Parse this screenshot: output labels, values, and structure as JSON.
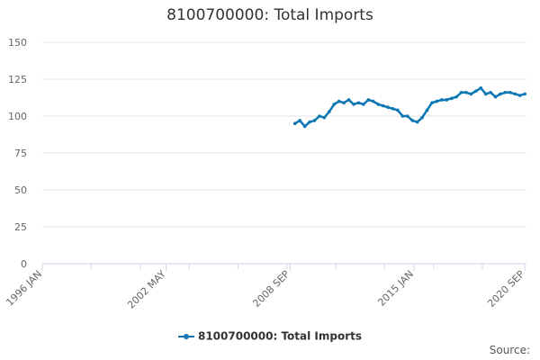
{
  "chart_data": {
    "type": "line",
    "title": "8100700000: Total Imports",
    "xlabel": "",
    "ylabel": "",
    "x_tick_labels": [
      "1996 JAN",
      "2002 MAY",
      "2008 SEP",
      "2015 JAN",
      "2020 SEP"
    ],
    "y_ticks": [
      0,
      25,
      50,
      75,
      100,
      125,
      150
    ],
    "ylim": [
      0,
      150
    ],
    "xlim": [
      "1996-01",
      "2020-10"
    ],
    "grid": true,
    "legend_position": "bottom",
    "series_color": "#0b77b3",
    "series": [
      {
        "name": "8100700000: Total Imports",
        "x": [
          "2008-12",
          "2009-03",
          "2009-06",
          "2009-09",
          "2009-12",
          "2010-03",
          "2010-06",
          "2010-09",
          "2010-12",
          "2011-03",
          "2011-06",
          "2011-09",
          "2011-12",
          "2012-03",
          "2012-06",
          "2012-09",
          "2012-12",
          "2013-03",
          "2013-06",
          "2013-09",
          "2013-12",
          "2014-03",
          "2014-06",
          "2014-09",
          "2014-12",
          "2015-03",
          "2015-06",
          "2015-09",
          "2015-12",
          "2016-03",
          "2016-06",
          "2016-09",
          "2016-12",
          "2017-03",
          "2017-06",
          "2017-09",
          "2017-12",
          "2018-03",
          "2018-06",
          "2018-09",
          "2018-12",
          "2019-03",
          "2019-06",
          "2019-09",
          "2019-12",
          "2020-03",
          "2020-06",
          "2020-09"
        ],
        "y": [
          95,
          97,
          93,
          96,
          97,
          100,
          99,
          103,
          108,
          110,
          109,
          111,
          108,
          109,
          108,
          111,
          110,
          108,
          107,
          106,
          105,
          104,
          100,
          100,
          97,
          96,
          99,
          104,
          109,
          110,
          111,
          111,
          112,
          113,
          116,
          116,
          115,
          117,
          119,
          115,
          116,
          113,
          115,
          116,
          116,
          115,
          114,
          115
        ]
      }
    ]
  },
  "source_label": "Source:"
}
